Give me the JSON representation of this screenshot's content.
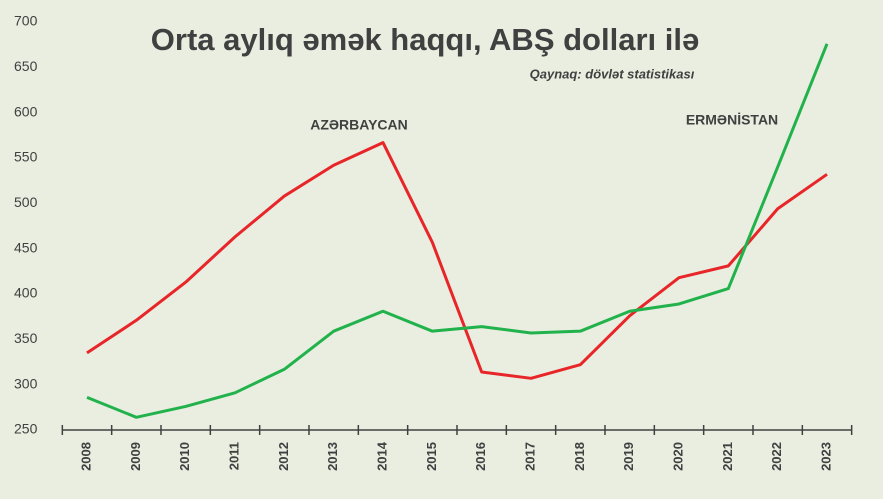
{
  "chart_data": {
    "type": "line",
    "title": "Orta aylıq əmək haqqı, ABŞ dolları ilə",
    "subtitle": "Qaynaq: dövlət statistikası",
    "categories": [
      "2008",
      "2009",
      "2010",
      "2011",
      "2012",
      "2013",
      "2014",
      "2015",
      "2016",
      "2017",
      "2018",
      "2019",
      "2020",
      "2021",
      "2022",
      "2023"
    ],
    "series": [
      {
        "name": "AZƏRBAYCAN",
        "color": "#e8262a",
        "values": [
          335,
          371,
          413,
          463,
          508,
          542,
          567,
          457,
          314,
          307,
          322,
          376,
          418,
          431,
          494,
          532
        ]
      },
      {
        "name": "ERMƏNİSTAN",
        "color": "#22b24c",
        "values": [
          286,
          264,
          276,
          291,
          317,
          359,
          381,
          359,
          364,
          357,
          359,
          381,
          389,
          406,
          540,
          676
        ]
      }
    ],
    "ylim": [
      250,
      700
    ],
    "yticks": [
      250,
      300,
      350,
      400,
      450,
      500,
      550,
      600,
      650,
      700
    ],
    "grid": false
  }
}
